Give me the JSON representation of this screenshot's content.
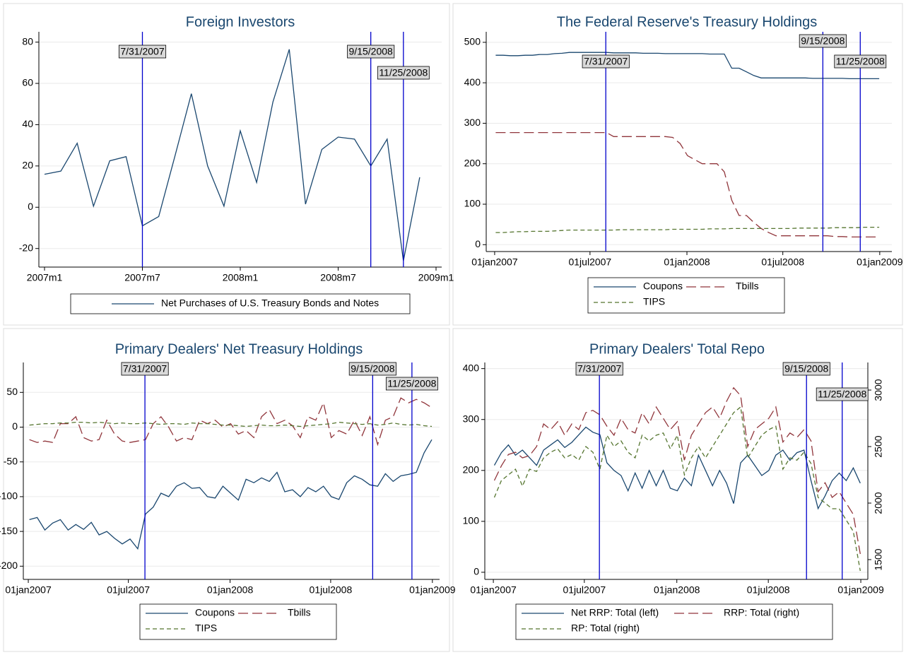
{
  "chart_data": [
    {
      "type": "line",
      "title": "Foreign Investors",
      "x": [
        "2007m1",
        "2007m2",
        "2007m3",
        "2007m4",
        "2007m5",
        "2007m6",
        "2007m7",
        "2007m8",
        "2007m9",
        "2007m10",
        "2007m11",
        "2007m12",
        "2008m1",
        "2008m2",
        "2008m3",
        "2008m4",
        "2008m5",
        "2008m6",
        "2008m7",
        "2008m8",
        "2008m9",
        "2008m10",
        "2008m11",
        "2008m12"
      ],
      "series": [
        {
          "name": "Net Purchases of U.S. Treasury Bonds and Notes",
          "color": "#1a476f",
          "dash": "solid",
          "values": [
            16,
            17.5,
            31,
            0.5,
            22.5,
            24.5,
            -9,
            -4.5,
            25,
            55,
            20,
            0.5,
            37,
            12,
            51,
            76.5,
            1.5,
            28,
            34,
            33,
            20,
            33,
            -26,
            14.5
          ]
        }
      ],
      "xlim": [
        "2007m1",
        "2009m1"
      ],
      "xticks": [
        "2007m1",
        "2007m7",
        "2008m1",
        "2008m7",
        "2009m1"
      ],
      "ylim": [
        -29,
        85
      ],
      "yticks": [
        -20,
        0,
        20,
        40,
        60,
        80
      ],
      "grid": true,
      "events": [
        {
          "x": "2007m7",
          "label": "7/31/2007"
        },
        {
          "x": "2008m9",
          "label": "9/15/2008"
        },
        {
          "x": "2008m11",
          "label": "11/25/2008"
        }
      ],
      "event_color": "#0000cc",
      "legend": "bottom"
    },
    {
      "type": "line",
      "title": "The Federal Reserve's Treasury Holdings",
      "x": [
        "2007-01-03",
        "2007-01-17",
        "2007-01-31",
        "2007-02-14",
        "2007-02-28",
        "2007-03-14",
        "2007-03-28",
        "2007-04-11",
        "2007-04-25",
        "2007-05-09",
        "2007-05-23",
        "2007-06-06",
        "2007-06-20",
        "2007-07-04",
        "2007-07-18",
        "2007-08-01",
        "2007-08-15",
        "2007-08-29",
        "2007-09-12",
        "2007-09-26",
        "2007-10-10",
        "2007-10-24",
        "2007-11-07",
        "2007-11-21",
        "2007-12-05",
        "2007-12-19",
        "2008-01-02",
        "2008-01-16",
        "2008-01-30",
        "2008-02-13",
        "2008-02-27",
        "2008-03-12",
        "2008-03-26",
        "2008-04-09",
        "2008-04-23",
        "2008-05-07",
        "2008-05-21",
        "2008-06-04",
        "2008-06-18",
        "2008-07-02",
        "2008-07-16",
        "2008-07-30",
        "2008-08-13",
        "2008-08-27",
        "2008-09-10",
        "2008-09-24",
        "2008-10-08",
        "2008-10-22",
        "2008-11-05",
        "2008-11-19",
        "2008-12-03",
        "2008-12-17",
        "2008-12-31"
      ],
      "series": [
        {
          "name": "Coupons",
          "color": "#1a476f",
          "dash": "solid",
          "values": [
            468,
            468,
            467,
            467,
            468,
            468,
            470,
            470,
            472,
            473,
            475,
            475,
            475,
            475,
            475,
            475,
            474,
            474,
            474,
            474,
            473,
            473,
            473,
            472,
            472,
            472,
            472,
            472,
            472,
            471,
            471,
            471,
            436,
            436,
            427,
            418,
            412,
            412,
            412,
            412,
            412,
            412,
            412,
            411,
            411,
            411,
            411,
            411,
            410,
            410,
            410,
            410,
            410
          ]
        },
        {
          "name": "Tbills",
          "color": "#90353b",
          "dash": "longdash",
          "values": [
            277,
            277,
            277,
            277,
            277,
            277,
            277,
            277,
            277,
            277,
            277,
            277,
            277,
            277,
            277,
            277,
            267,
            267,
            267,
            267,
            267,
            267,
            267,
            267,
            265,
            250,
            220,
            210,
            200,
            200,
            200,
            180,
            110,
            72,
            72,
            55,
            40,
            30,
            22,
            22,
            22,
            22,
            22,
            22,
            22,
            22,
            20,
            20,
            19,
            19,
            19,
            19,
            19
          ]
        },
        {
          "name": "TIPS",
          "color": "#55752f",
          "dash": "dash",
          "values": [
            30,
            30,
            31,
            32,
            32,
            33,
            33,
            33,
            34,
            35,
            36,
            36,
            36,
            36,
            36,
            36,
            36,
            37,
            37,
            37,
            37,
            37,
            37,
            37,
            38,
            38,
            38,
            38,
            38,
            39,
            39,
            39,
            40,
            40,
            40,
            40,
            40,
            40,
            40,
            40,
            40,
            41,
            41,
            41,
            41,
            41,
            42,
            42,
            42,
            42,
            43,
            43,
            43
          ]
        }
      ],
      "xlim": [
        "2006-12-16",
        "2009-01-24"
      ],
      "xticks": [
        {
          "value": "2007-01-01",
          "label": "01jan2007"
        },
        {
          "value": "2007-07-01",
          "label": "01jul2007"
        },
        {
          "value": "2008-01-01",
          "label": "01jan2008"
        },
        {
          "value": "2008-07-01",
          "label": "01jul2008"
        },
        {
          "value": "2009-01-01",
          "label": "01jan2009"
        }
      ],
      "ylim": [
        -17,
        526
      ],
      "yticks": [
        0,
        100,
        200,
        300,
        400,
        500
      ],
      "grid": true,
      "events": [
        {
          "x": "2007-07-31",
          "label": "7/31/2007"
        },
        {
          "x": "2008-09-15",
          "label": "9/15/2008"
        },
        {
          "x": "2008-11-25",
          "label": "11/25/2008"
        }
      ],
      "event_color": "#0000cc",
      "legend": "bottom"
    },
    {
      "type": "line",
      "title": "Primary Dealers' Net Treasury Holdings",
      "x": [
        "2007-01-03",
        "2007-01-17",
        "2007-01-31",
        "2007-02-14",
        "2007-02-28",
        "2007-03-14",
        "2007-03-28",
        "2007-04-11",
        "2007-04-25",
        "2007-05-09",
        "2007-05-23",
        "2007-06-06",
        "2007-06-20",
        "2007-07-04",
        "2007-07-18",
        "2007-08-01",
        "2007-08-15",
        "2007-08-29",
        "2007-09-12",
        "2007-09-26",
        "2007-10-10",
        "2007-10-24",
        "2007-11-07",
        "2007-11-21",
        "2007-12-05",
        "2007-12-19",
        "2008-01-02",
        "2008-01-16",
        "2008-01-30",
        "2008-02-13",
        "2008-02-27",
        "2008-03-12",
        "2008-03-26",
        "2008-04-09",
        "2008-04-23",
        "2008-05-07",
        "2008-05-21",
        "2008-06-04",
        "2008-06-18",
        "2008-07-02",
        "2008-07-16",
        "2008-07-30",
        "2008-08-13",
        "2008-08-27",
        "2008-09-10",
        "2008-09-24",
        "2008-10-08",
        "2008-10-22",
        "2008-11-05",
        "2008-11-19",
        "2008-12-03",
        "2008-12-17",
        "2008-12-31"
      ],
      "series": [
        {
          "name": "Coupons",
          "color": "#1a476f",
          "dash": "solid",
          "values": [
            -133,
            -130,
            -148,
            -138,
            -133,
            -148,
            -140,
            -147,
            -137,
            -155,
            -150,
            -160,
            -168,
            -161,
            -175,
            -125,
            -115,
            -95,
            -100,
            -85,
            -80,
            -88,
            -87,
            -100,
            -102,
            -85,
            -95,
            -105,
            -75,
            -80,
            -73,
            -78,
            -65,
            -93,
            -90,
            -100,
            -87,
            -93,
            -85,
            -100,
            -104,
            -80,
            -70,
            -75,
            -83,
            -85,
            -67,
            -78,
            -70,
            -68,
            -65,
            -37,
            -18
          ]
        },
        {
          "name": "Tbills",
          "color": "#90353b",
          "dash": "longdash",
          "values": [
            -18,
            -22,
            -20,
            -22,
            5,
            5,
            15,
            -15,
            -20,
            -18,
            10,
            -10,
            -20,
            -22,
            -20,
            -18,
            5,
            15,
            0,
            -20,
            -15,
            -18,
            10,
            5,
            10,
            0,
            5,
            -10,
            -5,
            -15,
            15,
            25,
            5,
            10,
            2,
            -15,
            15,
            10,
            35,
            -15,
            -5,
            -10,
            10,
            -12,
            15,
            -25,
            10,
            15,
            42,
            35,
            40,
            35,
            28
          ]
        },
        {
          "name": "TIPS",
          "color": "#55752f",
          "dash": "dash",
          "values": [
            3,
            4,
            5,
            5,
            6,
            6,
            7,
            7,
            6,
            7,
            6,
            5,
            6,
            5,
            5,
            6,
            5,
            4,
            5,
            5,
            4,
            6,
            5,
            5,
            4,
            3,
            3,
            2,
            1,
            2,
            3,
            2,
            2,
            3,
            2,
            1,
            2,
            3,
            4,
            5,
            7,
            6,
            5,
            4,
            5,
            3,
            4,
            6,
            4,
            3,
            4,
            2,
            1
          ]
        }
      ],
      "xlim": [
        "2006-12-23",
        "2009-01-14"
      ],
      "xticks": [
        {
          "value": "2007-01-01",
          "label": "01jan2007"
        },
        {
          "value": "2007-07-01",
          "label": "01jul2007"
        },
        {
          "value": "2008-01-01",
          "label": "01jan2008"
        },
        {
          "value": "2008-07-01",
          "label": "01jul2008"
        },
        {
          "value": "2009-01-01",
          "label": "01jan2009"
        }
      ],
      "ylim": [
        -219,
        93
      ],
      "yticks": [
        -200,
        -150,
        -100,
        -50,
        0,
        50
      ],
      "grid": true,
      "events": [
        {
          "x": "2007-07-31",
          "label": "7/31/2007"
        },
        {
          "x": "2008-09-15",
          "label": "9/15/2008"
        },
        {
          "x": "2008-11-25",
          "label": "11/25/2008"
        }
      ],
      "event_color": "#0000cc",
      "legend": "bottom"
    },
    {
      "type": "line",
      "title": "Primary Dealers' Total Repo",
      "x": [
        "2007-01-03",
        "2007-01-17",
        "2007-01-31",
        "2007-02-14",
        "2007-02-28",
        "2007-03-14",
        "2007-03-28",
        "2007-04-11",
        "2007-04-25",
        "2007-05-09",
        "2007-05-23",
        "2007-06-06",
        "2007-06-20",
        "2007-07-04",
        "2007-07-18",
        "2007-08-01",
        "2007-08-15",
        "2007-08-29",
        "2007-09-12",
        "2007-09-26",
        "2007-10-10",
        "2007-10-24",
        "2007-11-07",
        "2007-11-21",
        "2007-12-05",
        "2007-12-19",
        "2008-01-02",
        "2008-01-16",
        "2008-01-30",
        "2008-02-13",
        "2008-02-27",
        "2008-03-12",
        "2008-03-26",
        "2008-04-09",
        "2008-04-23",
        "2008-05-07",
        "2008-05-21",
        "2008-06-04",
        "2008-06-18",
        "2008-07-02",
        "2008-07-16",
        "2008-07-30",
        "2008-08-13",
        "2008-08-27",
        "2008-09-10",
        "2008-09-24",
        "2008-10-08",
        "2008-10-22",
        "2008-11-05",
        "2008-11-19",
        "2008-12-03",
        "2008-12-17",
        "2008-12-31"
      ],
      "series": [
        {
          "name": "Net RRP: Total (left)",
          "color": "#1a476f",
          "dash": "solid",
          "values": [
            210,
            235,
            250,
            230,
            240,
            225,
            210,
            240,
            250,
            260,
            245,
            255,
            270,
            285,
            275,
            270,
            215,
            200,
            190,
            160,
            195,
            165,
            200,
            170,
            200,
            165,
            160,
            185,
            170,
            230,
            200,
            170,
            200,
            175,
            135,
            215,
            230,
            210,
            190,
            200,
            230,
            240,
            220,
            235,
            240,
            180,
            125,
            150,
            180,
            195,
            180,
            205,
            175
          ]
        },
        {
          "name": "RRP: Total (right)",
          "color": "#90353b",
          "dash": "longdash",
          "axis": "y2",
          "values": [
            2200,
            2330,
            2430,
            2450,
            2400,
            2420,
            2500,
            2700,
            2650,
            2720,
            2600,
            2700,
            2650,
            2800,
            2820,
            2780,
            2680,
            2600,
            2750,
            2650,
            2620,
            2800,
            2700,
            2850,
            2750,
            2650,
            2720,
            2380,
            2600,
            2700,
            2800,
            2850,
            2750,
            2900,
            3020,
            2950,
            2500,
            2650,
            2700,
            2750,
            2850,
            2540,
            2620,
            2580,
            2650,
            2550,
            2100,
            2180,
            2050,
            2100,
            2000,
            1900,
            1550
          ]
        },
        {
          "name": "RP: Total (right)",
          "color": "#55752f",
          "dash": "dash",
          "axis": "y2",
          "values": [
            2050,
            2200,
            2250,
            2300,
            2150,
            2300,
            2280,
            2400,
            2450,
            2480,
            2400,
            2430,
            2380,
            2500,
            2450,
            2300,
            2600,
            2500,
            2550,
            2450,
            2400,
            2600,
            2550,
            2600,
            2620,
            2480,
            2600,
            2250,
            2400,
            2500,
            2400,
            2500,
            2600,
            2700,
            2800,
            2850,
            2400,
            2500,
            2600,
            2650,
            2680,
            2300,
            2400,
            2380,
            2450,
            2350,
            2050,
            2000,
            1950,
            1950,
            1850,
            1750,
            1400
          ]
        }
      ],
      "xlim": [
        "2006-12-15",
        "2009-01-15"
      ],
      "xticks": [
        {
          "value": "2007-01-01",
          "label": "01jan2007"
        },
        {
          "value": "2007-07-01",
          "label": "01jul2007"
        },
        {
          "value": "2008-01-01",
          "label": "01jan2008"
        },
        {
          "value": "2008-07-01",
          "label": "01jul2008"
        },
        {
          "value": "2009-01-01",
          "label": "01jan2009"
        }
      ],
      "ylim": [
        -14,
        412
      ],
      "yticks": [
        0,
        100,
        200,
        300,
        400
      ],
      "y2lim": [
        1325,
        3244
      ],
      "y2ticks": [
        1500,
        2000,
        2500,
        3000
      ],
      "grid": true,
      "events": [
        {
          "x": "2007-07-31",
          "label": "7/31/2007"
        },
        {
          "x": "2008-09-15",
          "label": "9/15/2008"
        },
        {
          "x": "2008-11-25",
          "label": "11/25/2008"
        }
      ],
      "event_color": "#0000cc",
      "legend": "bottom"
    }
  ]
}
